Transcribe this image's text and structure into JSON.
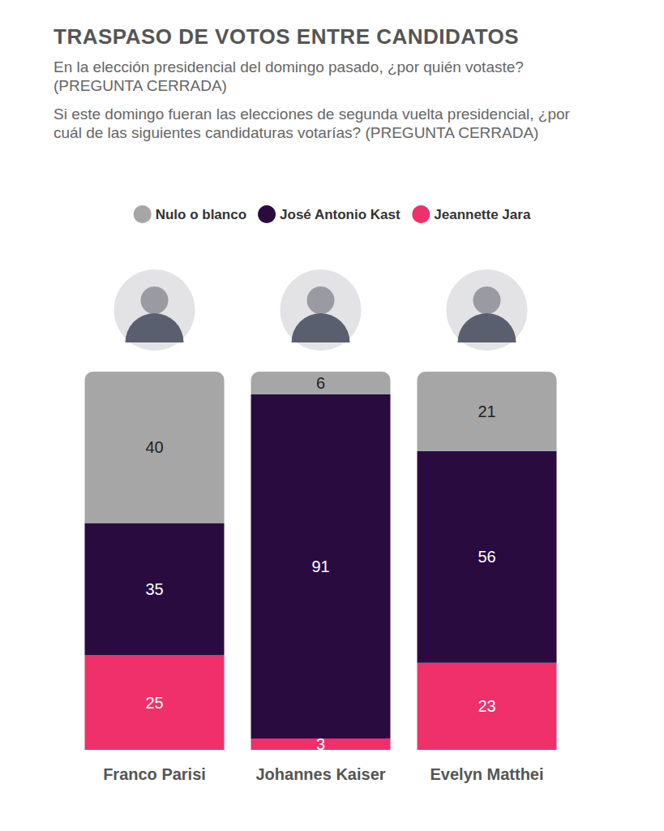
{
  "chart_data": {
    "type": "bar",
    "title": "TRASPASO DE VOTOS ENTRE CANDIDATOS",
    "subtitle": [
      "En la elección presidencial del domingo pasado, ¿por quién votaste? (PREGUNTA CERRADA)",
      "Si este domingo fueran las elecciones de segunda vuelta presidencial, ¿por cuál de las siguientes candidaturas votarías? (PREGUNTA CERRADA)"
    ],
    "categories": [
      "Franco Parisi",
      "Johannes Kaiser",
      "Evelyn Matthei"
    ],
    "series": [
      {
        "name": "Nulo o blanco",
        "color": "#a6a6a6",
        "values": [
          40,
          6,
          21
        ]
      },
      {
        "name": "José Antonio Kast",
        "color": "#2a0b40",
        "values": [
          35,
          91,
          56
        ]
      },
      {
        "name": "Jeannette Jara",
        "color": "#f0306a",
        "values": [
          25,
          3,
          23
        ]
      }
    ],
    "ylim": [
      0,
      100
    ],
    "stacked": true,
    "data_labels": true,
    "tick_labels": "x",
    "legend": "top",
    "grid": false
  }
}
